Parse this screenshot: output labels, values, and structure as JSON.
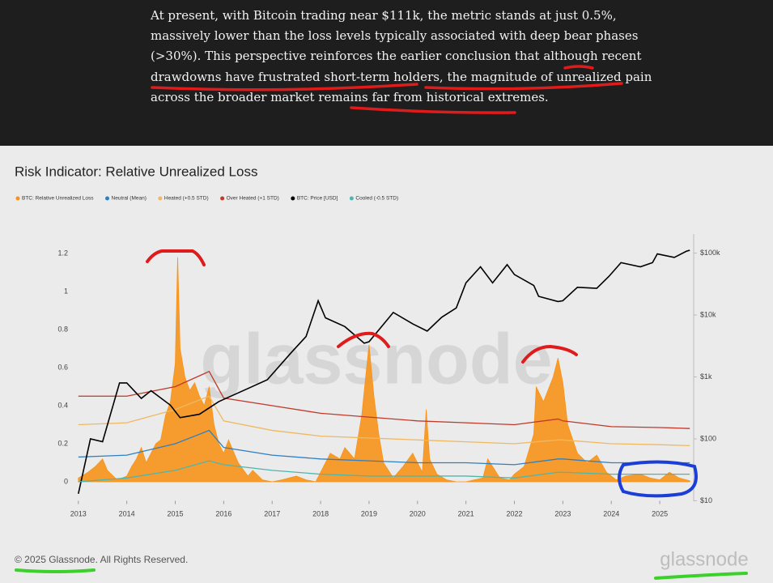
{
  "article": {
    "lines": [
      "At present, with Bitcoin trading near $111k, the metric stands at just 0.5%,",
      "massively lower than the loss levels typically associated with deep bear phases",
      "(>30%). This perspective reinforces the earlier conclusion that although recent",
      "drawdowns have frustrated short-term holders, the magnitude of unrealized pain",
      "across the broader market remains far from historical extremes."
    ]
  },
  "chart_data": {
    "type": "line",
    "title": "Risk Indicator: Relative Unrealized Loss",
    "watermark": "glassnode",
    "xlim": [
      2012.92,
      2025.7
    ],
    "xticks": [
      2013,
      2014,
      2015,
      2016,
      2017,
      2018,
      2019,
      2020,
      2021,
      2022,
      2023,
      2024,
      2025
    ],
    "ylim": [
      -0.1,
      1.3
    ],
    "yticks": [
      0,
      0.2,
      0.4,
      0.6,
      0.8,
      1,
      1.2
    ],
    "y2lim": [
      10,
      200000
    ],
    "y2scale": "log",
    "y2ticks": [
      {
        "value": 10,
        "label": "$10"
      },
      {
        "value": 100,
        "label": "$100"
      },
      {
        "value": 1000,
        "label": "$1k"
      },
      {
        "value": 10000,
        "label": "$10k"
      },
      {
        "value": 100000,
        "label": "$100k"
      }
    ],
    "grid": false,
    "legend": "top-left",
    "series": [
      {
        "name": "BTC: Relative Unrealized Loss",
        "color": "#f7931a",
        "type": "area",
        "x": [
          2013.0,
          2013.2,
          2013.35,
          2013.5,
          2013.6,
          2013.8,
          2014.0,
          2014.1,
          2014.2,
          2014.3,
          2014.4,
          2014.5,
          2014.6,
          2014.7,
          2014.8,
          2014.9,
          2015.0,
          2015.05,
          2015.1,
          2015.2,
          2015.3,
          2015.4,
          2015.5,
          2015.6,
          2015.7,
          2015.8,
          2015.9,
          2016.0,
          2016.1,
          2016.3,
          2016.5,
          2016.6,
          2016.8,
          2017.0,
          2017.2,
          2017.5,
          2017.7,
          2017.9,
          2018.1,
          2018.2,
          2018.4,
          2018.5,
          2018.7,
          2018.85,
          2018.95,
          2019.0,
          2019.1,
          2019.2,
          2019.3,
          2019.5,
          2019.7,
          2019.9,
          2020.1,
          2020.18,
          2020.25,
          2020.4,
          2020.6,
          2020.8,
          2021.0,
          2021.35,
          2021.45,
          2021.55,
          2021.7,
          2021.9,
          2022.0,
          2022.2,
          2022.4,
          2022.45,
          2022.6,
          2022.8,
          2022.9,
          2023.0,
          2023.1,
          2023.3,
          2023.5,
          2023.7,
          2023.9,
          2024.1,
          2024.3,
          2024.6,
          2024.8,
          2025.0,
          2025.2,
          2025.4,
          2025.62
        ],
        "values": [
          0.02,
          0.05,
          0.08,
          0.12,
          0.06,
          0.01,
          0.03,
          0.08,
          0.12,
          0.18,
          0.1,
          0.15,
          0.2,
          0.22,
          0.35,
          0.42,
          0.62,
          1.18,
          0.7,
          0.55,
          0.48,
          0.52,
          0.45,
          0.4,
          0.5,
          0.3,
          0.2,
          0.15,
          0.22,
          0.1,
          0.03,
          0.06,
          0.01,
          0.0,
          0.01,
          0.03,
          0.01,
          0.0,
          0.1,
          0.15,
          0.12,
          0.18,
          0.12,
          0.35,
          0.6,
          0.72,
          0.45,
          0.25,
          0.1,
          0.02,
          0.08,
          0.15,
          0.05,
          0.38,
          0.12,
          0.04,
          0.01,
          0.0,
          0.0,
          0.02,
          0.12,
          0.08,
          0.02,
          0.01,
          0.04,
          0.08,
          0.25,
          0.5,
          0.42,
          0.55,
          0.65,
          0.52,
          0.3,
          0.15,
          0.1,
          0.14,
          0.05,
          0.01,
          0.03,
          0.04,
          0.02,
          0.01,
          0.05,
          0.02,
          0.005
        ]
      },
      {
        "name": "Neutral (Mean)",
        "color": "#2f7fc1",
        "x": [
          2013,
          2014,
          2015,
          2015.7,
          2016,
          2017,
          2018,
          2019,
          2020,
          2021,
          2022,
          2022.9,
          2023,
          2024,
          2025,
          2025.62
        ],
        "values": [
          0.13,
          0.14,
          0.2,
          0.27,
          0.18,
          0.14,
          0.12,
          0.11,
          0.1,
          0.1,
          0.09,
          0.12,
          0.12,
          0.1,
          0.1,
          0.1
        ]
      },
      {
        "name": "Heated (+0.5 STD)",
        "color": "#f0b860",
        "x": [
          2013,
          2014,
          2015,
          2015.7,
          2016,
          2017,
          2018,
          2019,
          2020,
          2021,
          2022,
          2022.9,
          2023,
          2024,
          2025,
          2025.62
        ],
        "values": [
          0.3,
          0.31,
          0.38,
          0.45,
          0.32,
          0.27,
          0.24,
          0.23,
          0.22,
          0.21,
          0.2,
          0.22,
          0.22,
          0.2,
          0.195,
          0.19
        ]
      },
      {
        "name": "Over Heated (+1 STD)",
        "color": "#c0392b",
        "x": [
          2013,
          2014,
          2015,
          2015.7,
          2016,
          2017,
          2018,
          2019,
          2020,
          2021,
          2022,
          2022.9,
          2023,
          2024,
          2025,
          2025.62
        ],
        "values": [
          0.45,
          0.45,
          0.5,
          0.58,
          0.44,
          0.4,
          0.36,
          0.34,
          0.32,
          0.31,
          0.3,
          0.33,
          0.32,
          0.29,
          0.285,
          0.28
        ]
      },
      {
        "name": "BTC: Price [USD]",
        "color": "#000000",
        "axis": "y2",
        "x": [
          2013.0,
          2013.25,
          2013.5,
          2013.85,
          2014.0,
          2014.3,
          2014.5,
          2014.9,
          2015.1,
          2015.5,
          2015.9,
          2016.5,
          2016.9,
          2017.4,
          2017.7,
          2017.95,
          2018.1,
          2018.5,
          2018.9,
          2019.0,
          2019.5,
          2019.9,
          2020.2,
          2020.5,
          2020.8,
          2021.0,
          2021.3,
          2021.55,
          2021.85,
          2022.0,
          2022.4,
          2022.5,
          2022.9,
          2023.0,
          2023.3,
          2023.7,
          2023.95,
          2024.2,
          2024.6,
          2024.85,
          2024.95,
          2025.3,
          2025.55,
          2025.62
        ],
        "values": [
          13,
          100,
          90,
          800,
          800,
          450,
          600,
          350,
          220,
          250,
          400,
          650,
          900,
          2500,
          4500,
          17000,
          9000,
          6500,
          3500,
          3700,
          11000,
          7200,
          5500,
          9200,
          13000,
          33000,
          60000,
          33000,
          65000,
          45000,
          30000,
          20000,
          16500,
          17000,
          28000,
          27000,
          42000,
          70000,
          60000,
          70000,
          97000,
          85000,
          107000,
          111000
        ]
      },
      {
        "name": "Cooled (-0.5 STD)",
        "color": "#4db6ac",
        "x": [
          2013,
          2014,
          2015,
          2015.7,
          2016,
          2017,
          2018,
          2019,
          2020,
          2021,
          2022,
          2022.9,
          2023,
          2024,
          2025,
          2025.62
        ],
        "values": [
          0.0,
          0.02,
          0.06,
          0.11,
          0.09,
          0.06,
          0.04,
          0.03,
          0.03,
          0.03,
          0.02,
          0.05,
          0.05,
          0.04,
          0.04,
          0.04
        ]
      }
    ]
  },
  "footer": {
    "copyright": "© 2025 Glassnode. All Rights Reserved.",
    "logo": "glassnode"
  }
}
